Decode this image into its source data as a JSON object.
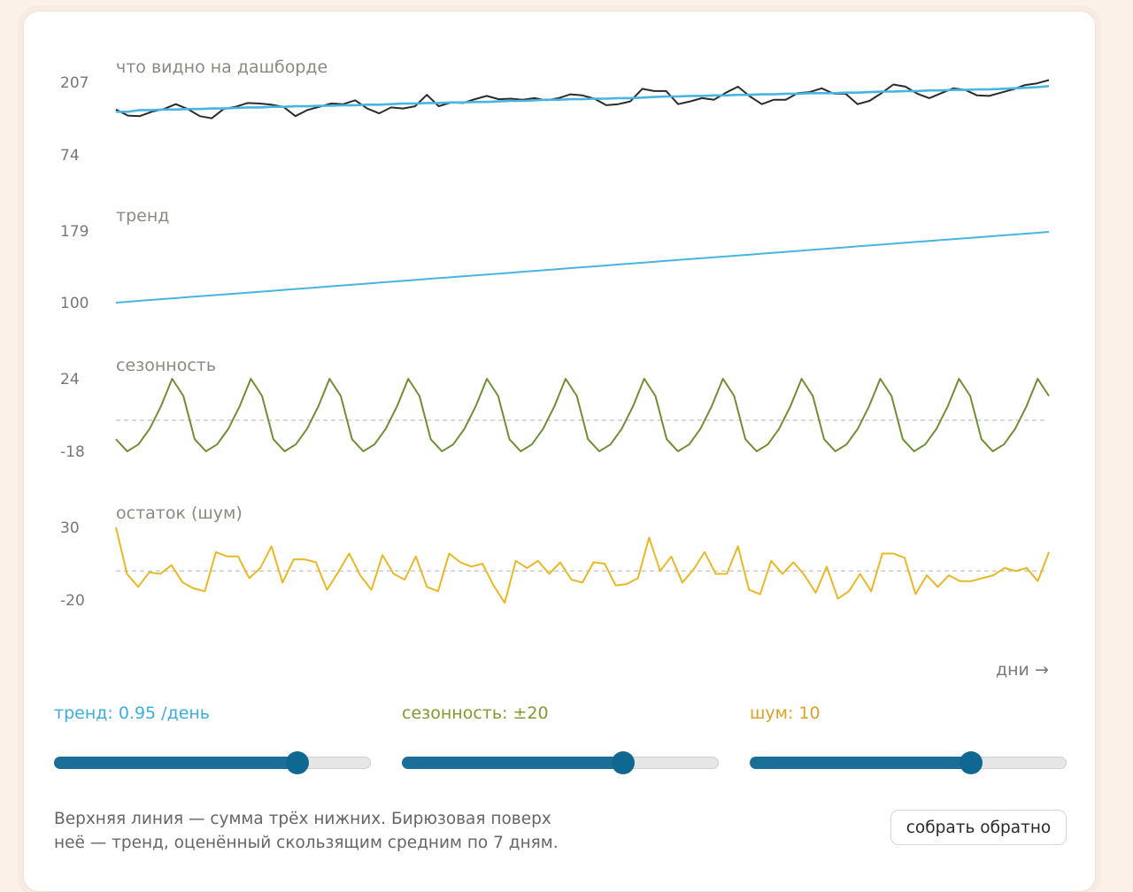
{
  "chart_data": [
    {
      "type": "line",
      "title": "что видно на дашборде",
      "yticks": [
        207,
        74
      ],
      "series": [
        {
          "values": [
            157,
            146,
            145,
            153,
            158,
            167,
            158,
            145,
            141,
            158,
            162,
            169,
            168,
            166,
            162,
            145,
            156,
            162,
            168,
            167,
            174,
            159,
            150,
            161,
            159,
            163,
            184,
            163,
            170,
            169,
            176,
            182,
            176,
            177,
            175,
            178,
            174,
            178,
            185,
            183,
            177,
            165,
            167,
            172,
            195,
            191,
            191,
            167,
            172,
            178,
            175,
            188,
            199,
            181,
            167,
            175,
            175,
            187,
            189,
            196,
            186,
            186,
            167,
            173,
            187,
            203,
            199,
            186,
            178,
            187,
            196,
            193,
            183,
            182,
            188,
            194,
            202,
            205,
            211
          ]
        },
        {
          "values": [
            153,
            153,
            156,
            156,
            157,
            157,
            158,
            158,
            159,
            159,
            160,
            161,
            161,
            162,
            162,
            163,
            163,
            164,
            164,
            165,
            165,
            166,
            166,
            167,
            168,
            168,
            169,
            169,
            170,
            170,
            171,
            171,
            172,
            173,
            173,
            174,
            175,
            175,
            176,
            176,
            177,
            177,
            178,
            178,
            179,
            180,
            181,
            181,
            182,
            182,
            183,
            183,
            184,
            184,
            185,
            185,
            186,
            186,
            187,
            187,
            187,
            188,
            188,
            189,
            190,
            190,
            191,
            191,
            192,
            192,
            193,
            193,
            194,
            194,
            195,
            196,
            197,
            198,
            200
          ]
        }
      ]
    },
    {
      "type": "line",
      "title": "тренд",
      "yticks": [
        179,
        100
      ],
      "series": [
        {
          "values": [
            100,
            101,
            102,
            103,
            104,
            105,
            106,
            107,
            108,
            109,
            110,
            111,
            112,
            113,
            114,
            115,
            116,
            117,
            118,
            119,
            120,
            121,
            122,
            123,
            124,
            125,
            126,
            127,
            128,
            129,
            130,
            131,
            132,
            133,
            134,
            135,
            136,
            137,
            138,
            139,
            140,
            141,
            142,
            143,
            144,
            145,
            146,
            147,
            148,
            149,
            150,
            151,
            152,
            153,
            154,
            155,
            156,
            157,
            158,
            159,
            160,
            161,
            162,
            163,
            164,
            165,
            166,
            167,
            168,
            169,
            170,
            171,
            172,
            173,
            174,
            175,
            176,
            177,
            178
          ]
        }
      ]
    },
    {
      "type": "line",
      "title": "сезонность",
      "yticks": [
        24,
        -18
      ],
      "zero_line": true,
      "series": [
        {
          "values": [
            -11,
            -18,
            -14,
            -5,
            8,
            24,
            14,
            -11,
            -18,
            -14,
            -5,
            8,
            24,
            14,
            -11,
            -18,
            -14,
            -5,
            8,
            24,
            14,
            -11,
            -18,
            -14,
            -5,
            8,
            24,
            14,
            -11,
            -18,
            -14,
            -5,
            8,
            24,
            14,
            -11,
            -18,
            -14,
            -5,
            8,
            24,
            14,
            -11,
            -18,
            -14,
            -5,
            8,
            24,
            14,
            -11,
            -18,
            -14,
            -5,
            8,
            24,
            14,
            -11,
            -18,
            -14,
            -5,
            8,
            24,
            14,
            -11,
            -18,
            -14,
            -5,
            8,
            24,
            14,
            -11,
            -18,
            -14,
            -5,
            8,
            24,
            14,
            -11,
            -18,
            -14,
            -5,
            8,
            24,
            14
          ]
        }
      ]
    },
    {
      "type": "line",
      "title": "остаток (шум)",
      "yticks": [
        30,
        -20
      ],
      "zero_line": true,
      "series": [
        {
          "values": [
            30,
            -2,
            -11,
            -1,
            -2,
            4,
            -8,
            -12,
            -14,
            13,
            10,
            10,
            -5,
            2,
            17,
            -8,
            8,
            8,
            6,
            -13,
            -1,
            12,
            -3,
            -13,
            11,
            -2,
            -6,
            10,
            -11,
            -14,
            12,
            6,
            3,
            5,
            -10,
            -22,
            7,
            2,
            7,
            -2,
            6,
            -6,
            -8,
            6,
            5,
            -10,
            -9,
            -5,
            23,
            0,
            10,
            -8,
            1,
            13,
            -2,
            -2,
            17,
            -13,
            -16,
            7,
            -2,
            6,
            -3,
            -15,
            3,
            -19,
            -14,
            -2,
            -14,
            12,
            12,
            9,
            -16,
            -3,
            -11,
            -3,
            -7,
            -7,
            -5,
            -3,
            2,
            0,
            2,
            -7,
            13
          ]
        }
      ]
    }
  ],
  "series_colors": {
    "observed": "#2b2b2b",
    "trend": "#48b4e0",
    "seasonal": "#6e8f35",
    "noise": "#e8b825",
    "zero_line": "#cccccc"
  },
  "axis": {
    "x_label": "дни →"
  },
  "controls": {
    "trend": {
      "label": "тренд: 0.95 /день",
      "value": 0.77,
      "color": "#3aaee0"
    },
    "seasonal": {
      "label": "сезонность: ±20",
      "value": 0.7,
      "color": "#84972f"
    },
    "noise": {
      "label": "шум: 10",
      "value": 0.7,
      "color": "#d6a325"
    }
  },
  "note": "Верхняя линия — сумма трёх нижних. Бирюзовая поверх неё — тренд, оценённый скользящим средним по 7 дням.",
  "button": {
    "label": "собрать обратно"
  }
}
